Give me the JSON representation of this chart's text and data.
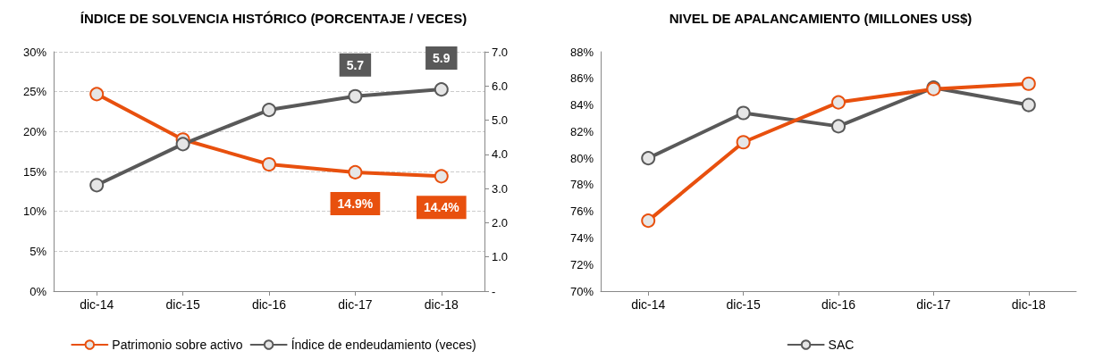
{
  "chart_data": [
    {
      "type": "line",
      "title": "ÍNDICE DE SOLVENCIA HISTÓRICO (PORCENTAJE / VECES)",
      "categories": [
        "dic-14",
        "dic-15",
        "dic-16",
        "dic-17",
        "dic-18"
      ],
      "series": [
        {
          "name": "Patrimonio sobre activo",
          "color": "#e8500e",
          "values": [
            24.7,
            19.0,
            15.9,
            14.9,
            14.4
          ],
          "value_labels": [
            null,
            null,
            null,
            "14.9%",
            "14.4%"
          ]
        },
        {
          "name": "Índice de endeudamiento (veces)",
          "color": "#595959",
          "axis": "y2",
          "values": [
            3.1,
            4.3,
            5.3,
            5.7,
            5.9
          ],
          "value_labels": [
            null,
            null,
            null,
            "5.7",
            "5.9"
          ]
        }
      ],
      "ylim": [
        0,
        30
      ],
      "yticks": [
        {
          "value": 0,
          "label": "0%"
        },
        {
          "value": 5,
          "label": "5%"
        },
        {
          "value": 10,
          "label": "10%"
        },
        {
          "value": 15,
          "label": "15%"
        },
        {
          "value": 20,
          "label": "20%"
        },
        {
          "value": 25,
          "label": "25%"
        },
        {
          "value": 30,
          "label": "30%"
        }
      ],
      "y2lim": [
        0,
        7
      ],
      "y2ticks": [
        {
          "value": 0,
          "label": "-"
        },
        {
          "value": 1,
          "label": "1.0"
        },
        {
          "value": 2,
          "label": "2.0"
        },
        {
          "value": 3,
          "label": "3.0"
        },
        {
          "value": 4,
          "label": "4.0"
        },
        {
          "value": 5,
          "label": "5.0"
        },
        {
          "value": 6,
          "label": "6.0"
        },
        {
          "value": 7,
          "label": "7.0"
        }
      ],
      "grid": "y",
      "legend": "bottom",
      "marker": "circle",
      "line_style": "solid"
    },
    {
      "type": "line",
      "title": "NIVEL DE APALANCAMIENTO (MILLONES US$)",
      "categories": [
        "dic-14",
        "dic-15",
        "dic-16",
        "dic-17",
        "dic-18"
      ],
      "series": [
        {
          "name": "SAC",
          "color": "#595959",
          "values": [
            80.0,
            83.4,
            82.4,
            85.3,
            84.0
          ]
        },
        {
          "color": "#e8500e",
          "values": [
            75.3,
            81.2,
            84.2,
            85.2,
            85.6
          ]
        }
      ],
      "ylim": [
        70,
        88
      ],
      "yticks": [
        {
          "value": 70,
          "label": "70%"
        },
        {
          "value": 72,
          "label": "72%"
        },
        {
          "value": 74,
          "label": "74%"
        },
        {
          "value": 76,
          "label": "76%"
        },
        {
          "value": 78,
          "label": "78%"
        },
        {
          "value": 80,
          "label": "80%"
        },
        {
          "value": 82,
          "label": "82%"
        },
        {
          "value": 84,
          "label": "84%"
        },
        {
          "value": 86,
          "label": "86%"
        },
        {
          "value": 88,
          "label": "88%"
        }
      ],
      "grid": false,
      "legend": "bottom",
      "marker": "circle",
      "line_style": "solid"
    }
  ]
}
